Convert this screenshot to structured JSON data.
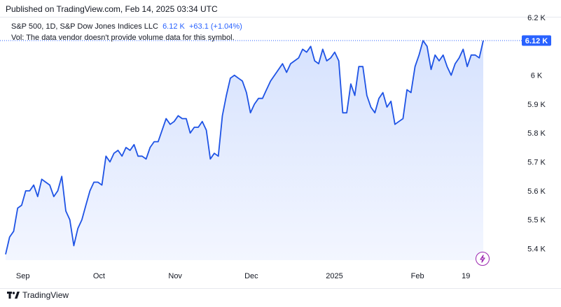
{
  "header": {
    "published": "Published on TradingView.com, Feb 14, 2025 03:34 UTC"
  },
  "legend": {
    "symbol": "S&P 500, 1D, S&P Dow Jones Indices LLC",
    "last": "6.12 K",
    "change": "+63.1 (+1.04%)",
    "volume_note": "Vol: The data vendor doesn't provide volume data for this symbol."
  },
  "price_tag": "6.12 K",
  "footer": {
    "brand": "TradingView"
  },
  "icons": {
    "brand": "tradingview-logo-icon",
    "alert": "lightning-icon"
  },
  "colors": {
    "line": "#1e53e5",
    "area_top": "#d6e2fe",
    "area_bottom": "#f3f6ff",
    "tag": "#2962ff",
    "bolt": "#9c27b0"
  },
  "chart_data": {
    "type": "area",
    "title": "S&P 500, 1D, S&P Dow Jones Indices LLC",
    "ylim": [
      5.36,
      6.2
    ],
    "y_ticks": [
      {
        "value": 5.4,
        "label": "5.4 K"
      },
      {
        "value": 5.5,
        "label": "5.5 K"
      },
      {
        "value": 5.6,
        "label": "5.6 K"
      },
      {
        "value": 5.7,
        "label": "5.7 K"
      },
      {
        "value": 5.8,
        "label": "5.8 K"
      },
      {
        "value": 5.9,
        "label": "5.9 K"
      },
      {
        "value": 6.0,
        "label": "6 K"
      },
      {
        "value": 6.2,
        "label": "6.2 K"
      }
    ],
    "x_ticks": [
      "Sep",
      "Oct",
      "Nov",
      "Dec",
      "2025",
      "Feb",
      "19"
    ],
    "x_tick_days": [
      2.5,
      13.5,
      24.5,
      35.5,
      47.5,
      59.5,
      66.5
    ],
    "last_value": 6.12,
    "values": [
      5.38,
      5.44,
      5.46,
      5.54,
      5.55,
      5.6,
      5.6,
      5.62,
      5.58,
      5.64,
      5.63,
      5.62,
      5.58,
      5.6,
      5.65,
      5.53,
      5.5,
      5.41,
      5.47,
      5.5,
      5.55,
      5.6,
      5.63,
      5.63,
      5.62,
      5.72,
      5.7,
      5.73,
      5.74,
      5.72,
      5.75,
      5.74,
      5.76,
      5.72,
      5.72,
      5.71,
      5.75,
      5.77,
      5.77,
      5.81,
      5.85,
      5.83,
      5.84,
      5.86,
      5.85,
      5.85,
      5.8,
      5.82,
      5.82,
      5.84,
      5.81,
      5.71,
      5.73,
      5.72,
      5.86,
      5.93,
      5.99,
      6.0,
      5.99,
      5.98,
      5.94,
      5.87,
      5.9,
      5.92,
      5.92,
      5.95,
      5.98,
      6.0,
      6.02,
      6.04,
      6.01,
      6.04,
      6.05,
      6.06,
      6.09,
      6.08,
      6.1,
      6.05,
      6.04,
      6.09,
      6.05,
      6.06,
      6.08,
      6.05,
      5.87,
      5.87,
      5.97,
      5.93,
      6.03,
      6.03,
      5.93,
      5.89,
      5.87,
      5.92,
      5.94,
      5.89,
      5.91,
      5.83,
      5.84,
      5.85,
      5.95,
      5.94,
      6.03,
      6.07,
      6.12,
      6.1,
      6.02,
      6.07,
      6.05,
      6.07,
      6.03,
      6.0,
      6.04,
      6.06,
      6.09,
      6.03,
      6.07,
      6.07,
      6.06,
      6.12
    ]
  }
}
